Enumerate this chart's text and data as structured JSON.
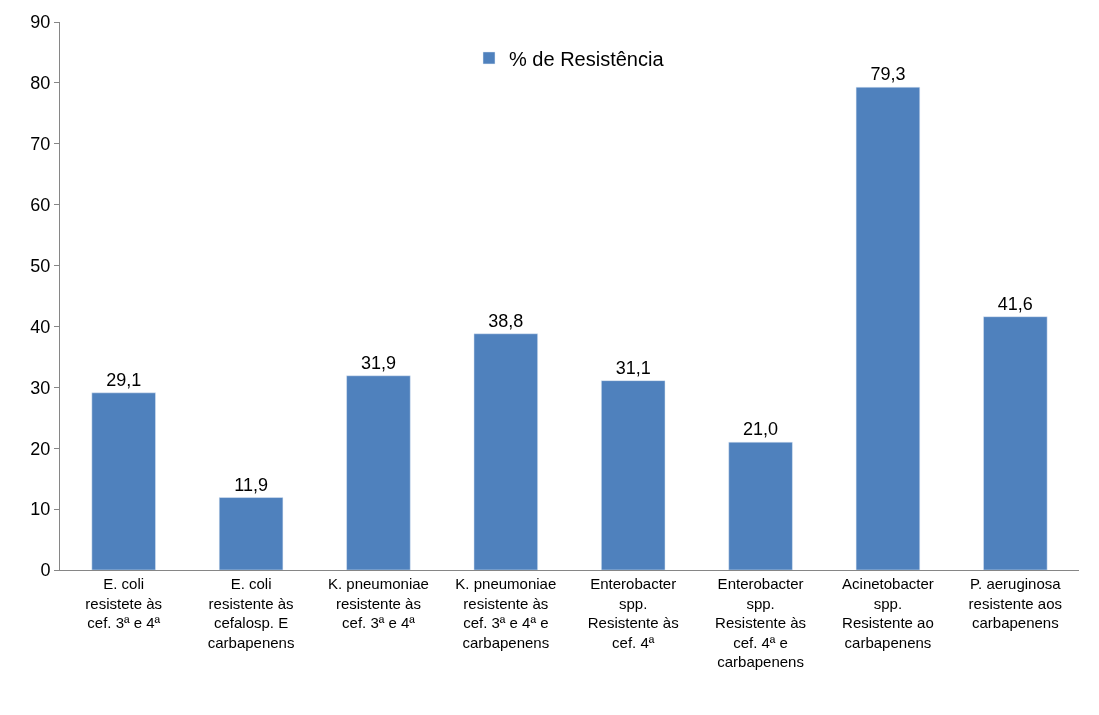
{
  "chart_data": {
    "type": "bar",
    "categories": [
      "E. coli resistete às cef. 3ª e 4ª",
      "E. coli resistente às cefalosp. E carbapenens",
      "K. pneumoniae resistente às cef. 3ª e 4ª",
      "K. pneumoniae resistente às cef. 3ª e 4ª e carbapenens",
      "Enterobacter spp. Resistente às cef. 4ª",
      "Enterobacter spp. Resistente às cef. 4ª e carbapenens",
      "Acinetobacter spp. Resistente ao carbapenens",
      "P. aeruginosa resistente aos carbapenens"
    ],
    "series": [
      {
        "name": "% de Resistência",
        "color": "#4f81bd",
        "values": [
          29.1,
          11.9,
          31.9,
          38.8,
          31.1,
          21.0,
          79.3,
          41.6
        ],
        "value_labels": [
          "29,1",
          "11,9",
          "31,9",
          "38,8",
          "31,1",
          "21,0",
          "79,3",
          "41,6"
        ]
      }
    ],
    "ylim": [
      0,
      90
    ],
    "yticks": [
      0,
      10,
      20,
      30,
      40,
      50,
      60,
      70,
      80,
      90
    ],
    "grid": false,
    "legend": "top"
  }
}
